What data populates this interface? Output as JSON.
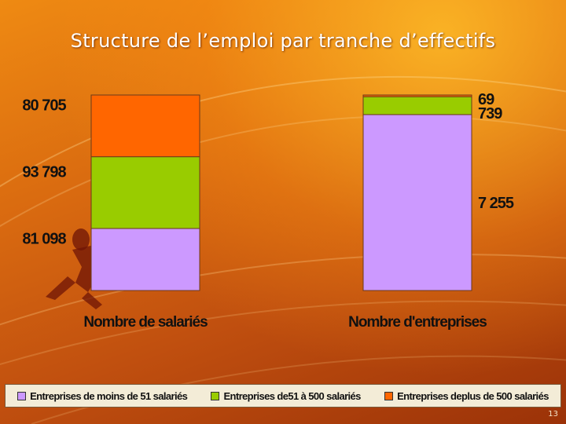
{
  "title": "Structure de l’emploi par tranche d’effectifs",
  "page_number": "13",
  "colors": {
    "small": "#cc99ff",
    "medium": "#99cc00",
    "large": "#ff6600"
  },
  "legend": [
    {
      "label": "Entreprises de moins de 51 salariés",
      "color": "#cc99ff"
    },
    {
      "label": "Entreprises de51 à 500 salariés",
      "color": "#99cc00"
    },
    {
      "label": "Entreprises deplus de 500 salariés",
      "color": "#ff6600"
    }
  ],
  "chart_data": {
    "type": "bar",
    "stacked": true,
    "normalized": true,
    "categories": [
      "Nombre de salariés",
      "Nombre d'entreprises"
    ],
    "series": [
      {
        "name": "Entreprises de moins de 51 salariés",
        "values": [
          81098,
          7255
        ],
        "labels": [
          "81 098",
          "7 255"
        ]
      },
      {
        "name": "Entreprises de51 à 500 salariés",
        "values": [
          93798,
          739
        ],
        "labels": [
          "93 798",
          "739"
        ]
      },
      {
        "name": "Entreprises deplus de 500 salariés",
        "values": [
          80705,
          69
        ],
        "labels": [
          "80 705",
          "69"
        ]
      }
    ],
    "legend_position": "bottom"
  }
}
